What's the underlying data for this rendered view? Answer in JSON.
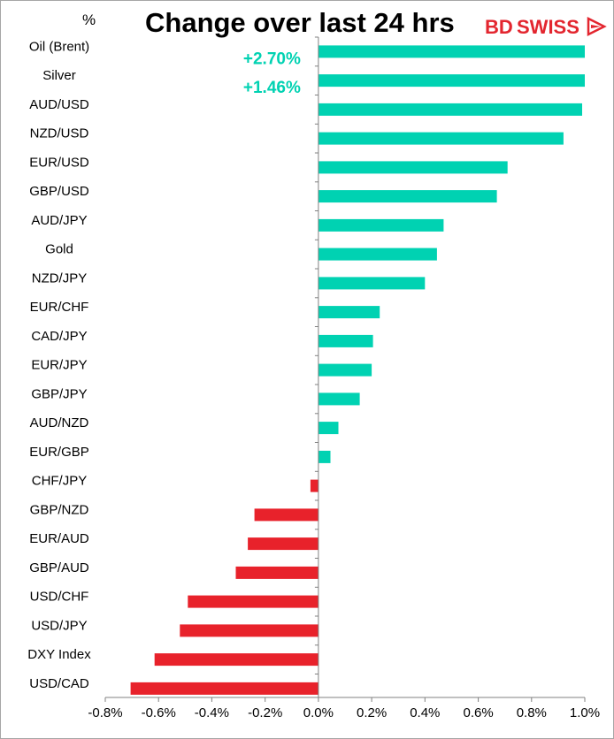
{
  "colors": {
    "positive": "#00d2b2",
    "negative": "#e8222b",
    "annotation": "#00d2b2",
    "logo": "#e3262f"
  },
  "logo": {
    "part1": "BD",
    "part2": "SWISS",
    "icon": "flag-arrow-icon"
  },
  "chart_data": {
    "type": "bar",
    "orientation": "horizontal",
    "title": "Change over last 24 hrs",
    "unit_label": "%",
    "categories": [
      "Oil (Brent)",
      "Silver",
      "AUD/USD",
      "NZD/USD",
      "EUR/USD",
      "GBP/USD",
      "AUD/JPY",
      "Gold",
      "NZD/JPY",
      "EUR/CHF",
      "CAD/JPY",
      "EUR/JPY",
      "GBP/JPY",
      "AUD/NZD",
      "EUR/GBP",
      "CHF/JPY",
      "GBP/NZD",
      "EUR/AUD",
      "GBP/AUD",
      "USD/CHF",
      "USD/JPY",
      "DXY Index",
      "USD/CAD"
    ],
    "values": [
      1.0,
      1.0,
      0.99,
      0.92,
      0.71,
      0.67,
      0.47,
      0.445,
      0.4,
      0.23,
      0.205,
      0.2,
      0.155,
      0.075,
      0.045,
      -0.03,
      -0.24,
      -0.265,
      -0.31,
      -0.49,
      -0.52,
      -0.615,
      -0.705
    ],
    "xlim": [
      -0.8,
      1.0
    ],
    "ticks": [
      -0.8,
      -0.6,
      -0.4,
      -0.2,
      0.0,
      0.2,
      0.4,
      0.6,
      0.8,
      1.0
    ],
    "tick_labels": [
      "-0.8%",
      "-0.6%",
      "-0.4%",
      "-0.2%",
      "0.0%",
      "0.2%",
      "0.4%",
      "0.6%",
      "0.8%",
      "1.0%"
    ],
    "annotations": [
      {
        "category": "Oil (Brent)",
        "text": "+2.70%"
      },
      {
        "category": "Silver",
        "text": "+1.46%"
      }
    ],
    "grid": false,
    "legend": "none"
  }
}
